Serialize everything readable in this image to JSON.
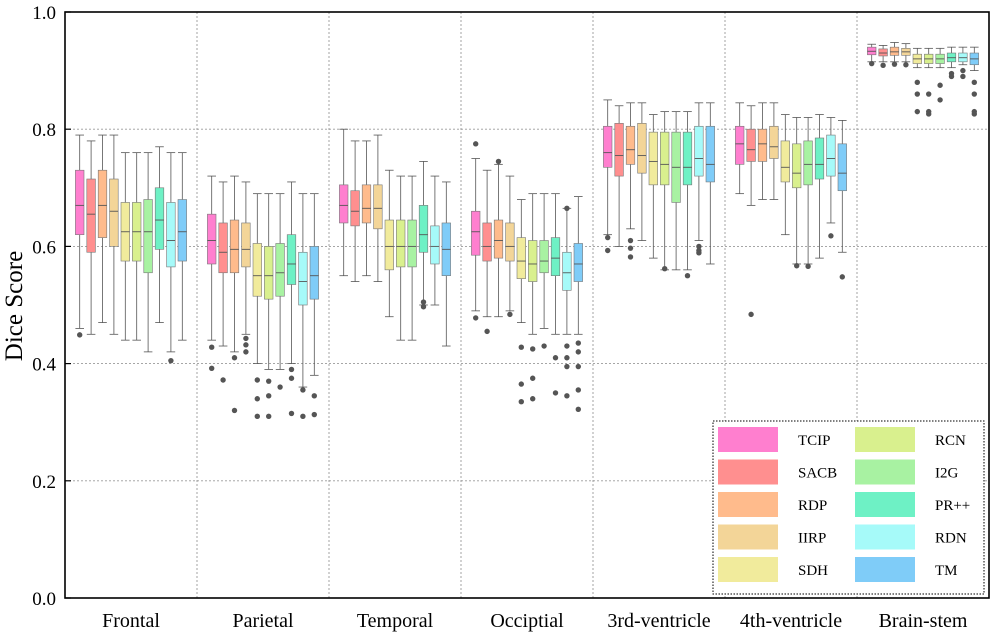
{
  "chart_data": {
    "type": "box",
    "ylabel": "Dice Score",
    "xlabel": "",
    "ylim": [
      0.0,
      1.0
    ],
    "yticks": [
      "0.0",
      "0.2",
      "0.4",
      "0.6",
      "0.8",
      "1.0"
    ],
    "grid": true,
    "legend_position": "bottom-right",
    "categories": [
      "Frontal",
      "Parietal",
      "Temporal",
      "Occiptial",
      "3rd-ventricle",
      "4th-ventricle",
      "Brain-stem"
    ],
    "series": [
      {
        "name": "TCIP",
        "color": "#ff7fcf",
        "boxes": [
          {
            "whislo": 0.46,
            "q1": 0.62,
            "med": 0.67,
            "q3": 0.73,
            "whishi": 0.79,
            "fliers": [
              0.449
            ]
          },
          {
            "whislo": 0.44,
            "q1": 0.57,
            "med": 0.61,
            "q3": 0.655,
            "whishi": 0.72,
            "fliers": [
              0.428,
              0.392
            ]
          },
          {
            "whislo": 0.55,
            "q1": 0.64,
            "med": 0.67,
            "q3": 0.705,
            "whishi": 0.8,
            "fliers": []
          },
          {
            "whislo": 0.49,
            "q1": 0.585,
            "med": 0.625,
            "q3": 0.66,
            "whishi": 0.75,
            "fliers": [
              0.775,
              0.478
            ]
          },
          {
            "whislo": 0.62,
            "q1": 0.735,
            "med": 0.76,
            "q3": 0.805,
            "whishi": 0.85,
            "fliers": [
              0.615,
              0.593
            ]
          },
          {
            "whislo": 0.69,
            "q1": 0.74,
            "med": 0.775,
            "q3": 0.805,
            "whishi": 0.845,
            "fliers": []
          },
          {
            "whislo": 0.915,
            "q1": 0.927,
            "med": 0.933,
            "q3": 0.94,
            "whishi": 0.945,
            "fliers": [
              0.912
            ]
          }
        ]
      },
      {
        "name": "SACB",
        "color": "#ff8f8f",
        "boxes": [
          {
            "whislo": 0.45,
            "q1": 0.59,
            "med": 0.655,
            "q3": 0.715,
            "whishi": 0.78,
            "fliers": []
          },
          {
            "whislo": 0.43,
            "q1": 0.555,
            "med": 0.59,
            "q3": 0.64,
            "whishi": 0.71,
            "fliers": [
              0.372
            ]
          },
          {
            "whislo": 0.54,
            "q1": 0.635,
            "med": 0.66,
            "q3": 0.695,
            "whishi": 0.78,
            "fliers": []
          },
          {
            "whislo": 0.48,
            "q1": 0.575,
            "med": 0.6,
            "q3": 0.64,
            "whishi": 0.73,
            "fliers": [
              0.455
            ]
          },
          {
            "whislo": 0.6,
            "q1": 0.72,
            "med": 0.755,
            "q3": 0.81,
            "whishi": 0.84,
            "fliers": []
          },
          {
            "whislo": 0.67,
            "q1": 0.745,
            "med": 0.765,
            "q3": 0.8,
            "whishi": 0.84,
            "fliers": [
              0.484
            ]
          },
          {
            "whislo": 0.915,
            "q1": 0.925,
            "med": 0.93,
            "q3": 0.937,
            "whishi": 0.943,
            "fliers": [
              0.909
            ]
          }
        ]
      },
      {
        "name": "RDP",
        "color": "#ffbb8c",
        "boxes": [
          {
            "whislo": 0.47,
            "q1": 0.615,
            "med": 0.67,
            "q3": 0.73,
            "whishi": 0.79,
            "fliers": []
          },
          {
            "whislo": 0.42,
            "q1": 0.555,
            "med": 0.595,
            "q3": 0.645,
            "whishi": 0.72,
            "fliers": [
              0.41,
              0.32
            ]
          },
          {
            "whislo": 0.55,
            "q1": 0.64,
            "med": 0.665,
            "q3": 0.705,
            "whishi": 0.78,
            "fliers": []
          },
          {
            "whislo": 0.48,
            "q1": 0.58,
            "med": 0.61,
            "q3": 0.645,
            "whishi": 0.74,
            "fliers": [
              0.745
            ]
          },
          {
            "whislo": 0.63,
            "q1": 0.74,
            "med": 0.765,
            "q3": 0.805,
            "whishi": 0.845,
            "fliers": [
              0.61,
              0.597,
              0.582
            ]
          },
          {
            "whislo": 0.68,
            "q1": 0.745,
            "med": 0.775,
            "q3": 0.8,
            "whishi": 0.845,
            "fliers": []
          },
          {
            "whislo": 0.915,
            "q1": 0.926,
            "med": 0.932,
            "q3": 0.94,
            "whishi": 0.948,
            "fliers": [
              0.911
            ]
          }
        ]
      },
      {
        "name": "IIRP",
        "color": "#f3d598",
        "boxes": [
          {
            "whislo": 0.45,
            "q1": 0.6,
            "med": 0.66,
            "q3": 0.715,
            "whishi": 0.79,
            "fliers": []
          },
          {
            "whislo": 0.45,
            "q1": 0.565,
            "med": 0.595,
            "q3": 0.64,
            "whishi": 0.71,
            "fliers": [
              0.443,
              0.432,
              0.42
            ]
          },
          {
            "whislo": 0.54,
            "q1": 0.63,
            "med": 0.665,
            "q3": 0.705,
            "whishi": 0.79,
            "fliers": []
          },
          {
            "whislo": 0.49,
            "q1": 0.575,
            "med": 0.6,
            "q3": 0.64,
            "whishi": 0.72,
            "fliers": [
              0.484
            ]
          },
          {
            "whislo": 0.61,
            "q1": 0.725,
            "med": 0.755,
            "q3": 0.81,
            "whishi": 0.845,
            "fliers": []
          },
          {
            "whislo": 0.68,
            "q1": 0.75,
            "med": 0.77,
            "q3": 0.805,
            "whishi": 0.845,
            "fliers": []
          },
          {
            "whislo": 0.915,
            "q1": 0.926,
            "med": 0.932,
            "q3": 0.938,
            "whishi": 0.946,
            "fliers": [
              0.91
            ]
          }
        ]
      },
      {
        "name": "SDH",
        "color": "#f1eb9c",
        "boxes": [
          {
            "whislo": 0.44,
            "q1": 0.575,
            "med": 0.625,
            "q3": 0.675,
            "whishi": 0.76,
            "fliers": []
          },
          {
            "whislo": 0.4,
            "q1": 0.515,
            "med": 0.55,
            "q3": 0.605,
            "whishi": 0.69,
            "fliers": [
              0.372,
              0.34,
              0.31
            ]
          },
          {
            "whislo": 0.48,
            "q1": 0.56,
            "med": 0.6,
            "q3": 0.645,
            "whishi": 0.73,
            "fliers": []
          },
          {
            "whislo": 0.47,
            "q1": 0.545,
            "med": 0.575,
            "q3": 0.615,
            "whishi": 0.68,
            "fliers": [
              0.428,
              0.365,
              0.335
            ]
          },
          {
            "whislo": 0.58,
            "q1": 0.705,
            "med": 0.745,
            "q3": 0.795,
            "whishi": 0.825,
            "fliers": []
          },
          {
            "whislo": 0.62,
            "q1": 0.71,
            "med": 0.735,
            "q3": 0.78,
            "whishi": 0.825,
            "fliers": []
          },
          {
            "whislo": 0.905,
            "q1": 0.912,
            "med": 0.92,
            "q3": 0.928,
            "whishi": 0.938,
            "fliers": [
              0.88,
              0.86,
              0.83
            ]
          }
        ]
      },
      {
        "name": "RCN",
        "color": "#d9f08e",
        "boxes": [
          {
            "whislo": 0.44,
            "q1": 0.575,
            "med": 0.625,
            "q3": 0.675,
            "whishi": 0.76,
            "fliers": []
          },
          {
            "whislo": 0.39,
            "q1": 0.51,
            "med": 0.55,
            "q3": 0.6,
            "whishi": 0.69,
            "fliers": [
              0.37,
              0.345,
              0.31
            ]
          },
          {
            "whislo": 0.44,
            "q1": 0.565,
            "med": 0.6,
            "q3": 0.645,
            "whishi": 0.72,
            "fliers": []
          },
          {
            "whislo": 0.45,
            "q1": 0.54,
            "med": 0.57,
            "q3": 0.61,
            "whishi": 0.69,
            "fliers": [
              0.425,
              0.375,
              0.34
            ]
          },
          {
            "whislo": 0.56,
            "q1": 0.705,
            "med": 0.74,
            "q3": 0.795,
            "whishi": 0.83,
            "fliers": [
              0.562
            ]
          },
          {
            "whislo": 0.57,
            "q1": 0.7,
            "med": 0.725,
            "q3": 0.775,
            "whishi": 0.82,
            "fliers": [
              0.567
            ]
          },
          {
            "whislo": 0.905,
            "q1": 0.912,
            "med": 0.92,
            "q3": 0.928,
            "whishi": 0.938,
            "fliers": [
              0.86,
              0.83,
              0.826
            ]
          }
        ]
      },
      {
        "name": "I2G",
        "color": "#a8f2a2",
        "boxes": [
          {
            "whislo": 0.42,
            "q1": 0.555,
            "med": 0.625,
            "q3": 0.68,
            "whishi": 0.76,
            "fliers": []
          },
          {
            "whislo": 0.39,
            "q1": 0.515,
            "med": 0.555,
            "q3": 0.605,
            "whishi": 0.69,
            "fliers": [
              0.36
            ]
          },
          {
            "whislo": 0.44,
            "q1": 0.565,
            "med": 0.6,
            "q3": 0.645,
            "whishi": 0.72,
            "fliers": []
          },
          {
            "whislo": 0.46,
            "q1": 0.555,
            "med": 0.575,
            "q3": 0.61,
            "whishi": 0.69,
            "fliers": [
              0.43
            ]
          },
          {
            "whislo": 0.56,
            "q1": 0.675,
            "med": 0.735,
            "q3": 0.795,
            "whishi": 0.83,
            "fliers": []
          },
          {
            "whislo": 0.57,
            "q1": 0.705,
            "med": 0.74,
            "q3": 0.78,
            "whishi": 0.82,
            "fliers": [
              0.566
            ]
          },
          {
            "whislo": 0.905,
            "q1": 0.912,
            "med": 0.92,
            "q3": 0.928,
            "whishi": 0.938,
            "fliers": [
              0.875,
              0.85
            ]
          }
        ]
      },
      {
        "name": "PR++",
        "color": "#6ef1c5",
        "boxes": [
          {
            "whislo": 0.47,
            "q1": 0.595,
            "med": 0.645,
            "q3": 0.7,
            "whishi": 0.77,
            "fliers": []
          },
          {
            "whislo": 0.4,
            "q1": 0.535,
            "med": 0.57,
            "q3": 0.62,
            "whishi": 0.71,
            "fliers": [
              0.39,
              0.375,
              0.315
            ]
          },
          {
            "whislo": 0.5,
            "q1": 0.59,
            "med": 0.62,
            "q3": 0.67,
            "whishi": 0.745,
            "fliers": [
              0.505,
              0.497
            ]
          },
          {
            "whislo": 0.45,
            "q1": 0.55,
            "med": 0.58,
            "q3": 0.615,
            "whishi": 0.69,
            "fliers": [
              0.41,
              0.35
            ]
          },
          {
            "whislo": 0.56,
            "q1": 0.705,
            "med": 0.735,
            "q3": 0.795,
            "whishi": 0.83,
            "fliers": [
              0.55
            ]
          },
          {
            "whislo": 0.58,
            "q1": 0.715,
            "med": 0.74,
            "q3": 0.785,
            "whishi": 0.825,
            "fliers": []
          },
          {
            "whislo": 0.905,
            "q1": 0.915,
            "med": 0.922,
            "q3": 0.93,
            "whishi": 0.94,
            "fliers": [
              0.895,
              0.89
            ]
          }
        ]
      },
      {
        "name": "RDN",
        "color": "#a6faf9",
        "boxes": [
          {
            "whislo": 0.42,
            "q1": 0.565,
            "med": 0.61,
            "q3": 0.675,
            "whishi": 0.76,
            "fliers": [
              0.405
            ]
          },
          {
            "whislo": 0.36,
            "q1": 0.5,
            "med": 0.54,
            "q3": 0.59,
            "whishi": 0.69,
            "fliers": [
              0.355,
              0.31
            ]
          },
          {
            "whislo": 0.5,
            "q1": 0.57,
            "med": 0.6,
            "q3": 0.635,
            "whishi": 0.72,
            "fliers": []
          },
          {
            "whislo": 0.45,
            "q1": 0.525,
            "med": 0.555,
            "q3": 0.59,
            "whishi": 0.665,
            "fliers": [
              0.665,
              0.43,
              0.41,
              0.395,
              0.345
            ]
          },
          {
            "whislo": 0.61,
            "q1": 0.72,
            "med": 0.75,
            "q3": 0.805,
            "whishi": 0.845,
            "fliers": [
              0.6,
              0.593,
              0.589
            ]
          },
          {
            "whislo": 0.64,
            "q1": 0.72,
            "med": 0.75,
            "q3": 0.79,
            "whishi": 0.82,
            "fliers": [
              0.618
            ]
          },
          {
            "whislo": 0.91,
            "q1": 0.915,
            "med": 0.922,
            "q3": 0.93,
            "whishi": 0.94,
            "fliers": [
              0.9,
              0.89
            ]
          }
        ]
      },
      {
        "name": "TM",
        "color": "#7fccf8",
        "boxes": [
          {
            "whislo": 0.44,
            "q1": 0.575,
            "med": 0.625,
            "q3": 0.68,
            "whishi": 0.76,
            "fliers": []
          },
          {
            "whislo": 0.38,
            "q1": 0.51,
            "med": 0.55,
            "q3": 0.6,
            "whishi": 0.69,
            "fliers": [
              0.345,
              0.313
            ]
          },
          {
            "whislo": 0.43,
            "q1": 0.55,
            "med": 0.595,
            "q3": 0.64,
            "whishi": 0.71,
            "fliers": []
          },
          {
            "whislo": 0.45,
            "q1": 0.54,
            "med": 0.57,
            "q3": 0.605,
            "whishi": 0.685,
            "fliers": [
              0.435,
              0.42,
              0.395,
              0.355,
              0.322
            ]
          },
          {
            "whislo": 0.57,
            "q1": 0.71,
            "med": 0.74,
            "q3": 0.805,
            "whishi": 0.845,
            "fliers": []
          },
          {
            "whislo": 0.59,
            "q1": 0.695,
            "med": 0.725,
            "q3": 0.775,
            "whishi": 0.815,
            "fliers": [
              0.548
            ]
          },
          {
            "whislo": 0.9,
            "q1": 0.91,
            "med": 0.92,
            "q3": 0.93,
            "whishi": 0.94,
            "fliers": [
              0.88,
              0.86,
              0.83,
              0.826
            ]
          }
        ]
      }
    ]
  }
}
